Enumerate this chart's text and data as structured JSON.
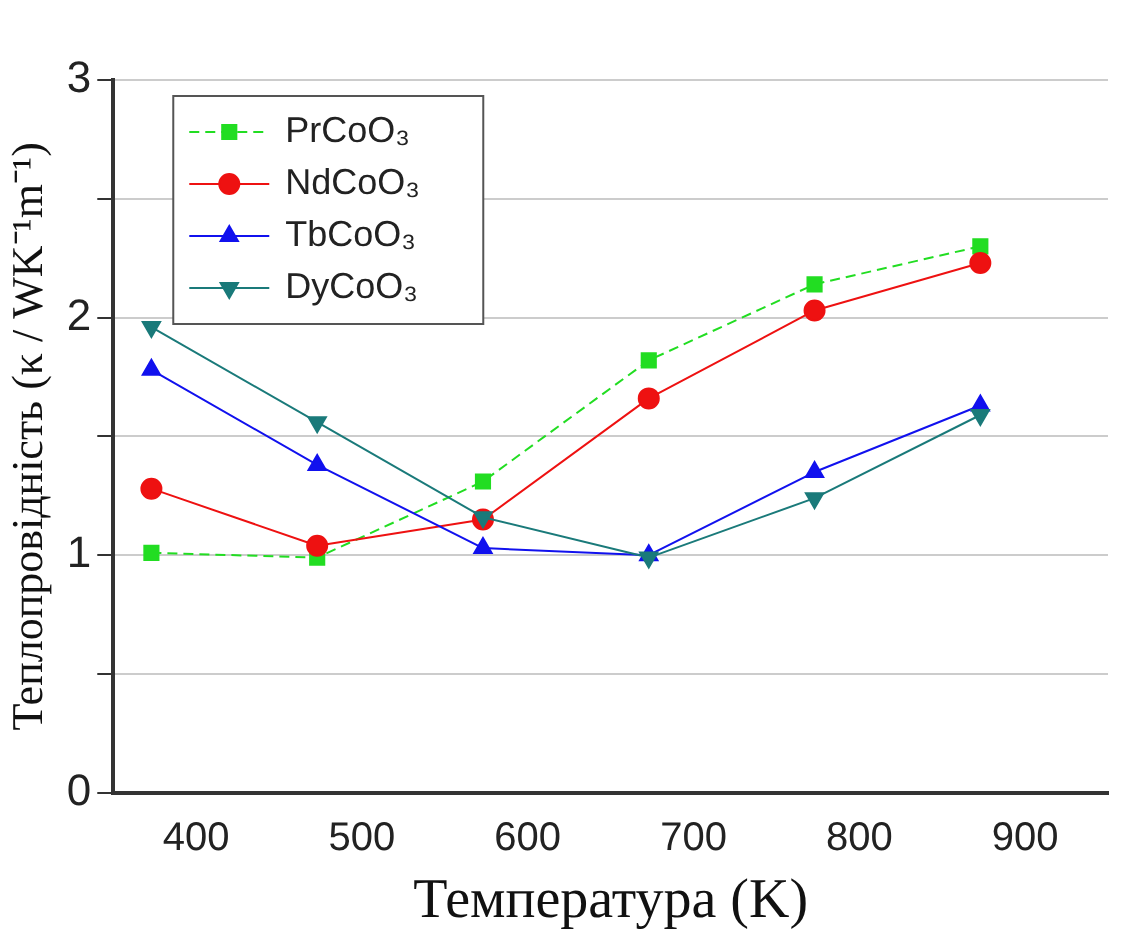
{
  "chart_data": {
    "type": "line",
    "xlabel": "Температура (K)",
    "ylabel": "Теплопровідність (κ / WK⁻¹m⁻¹)",
    "x": [
      373,
      473,
      573,
      673,
      773,
      873
    ],
    "series": [
      {
        "name": "PrCoO₃",
        "color": "#22dd22",
        "marker": "square",
        "line_style": "dashed",
        "values": [
          1.01,
          0.99,
          1.31,
          1.82,
          2.14,
          2.3
        ]
      },
      {
        "name": "NdCoO₃",
        "color": "#ee1111",
        "marker": "circle",
        "line_style": "solid",
        "values": [
          1.28,
          1.04,
          1.15,
          1.66,
          2.03,
          2.23
        ]
      },
      {
        "name": "TbCoO₃",
        "color": "#1111ee",
        "marker": "triangle",
        "line_style": "solid",
        "values": [
          1.78,
          1.38,
          1.03,
          1.0,
          1.35,
          1.63
        ]
      },
      {
        "name": "DyCoO₃",
        "color": "#1a7a7a",
        "marker": "triangle-down",
        "line_style": "solid",
        "values": [
          1.96,
          1.56,
          1.16,
          0.99,
          1.24,
          1.59
        ]
      }
    ],
    "xlim": [
      350,
      950
    ],
    "xticks": [
      400,
      500,
      600,
      700,
      800,
      900
    ],
    "ylim": [
      0,
      3
    ],
    "yticks": [
      0,
      {
        "value": 0.5,
        "label": null
      },
      1,
      {
        "value": 1.5,
        "label": null
      },
      2,
      {
        "value": 2.5,
        "label": null
      },
      3
    ],
    "grid": "y",
    "legend": "top left"
  }
}
